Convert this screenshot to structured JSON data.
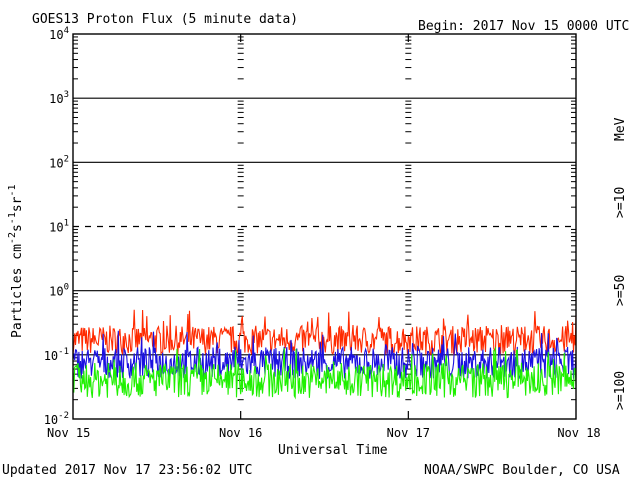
{
  "chart_data": {
    "type": "line",
    "title": "GOES13 Proton Flux (5 minute data)",
    "begin_label": "Begin: 2017 Nov 15 0000 UTC",
    "ylabel": "Particles cm-2s-1sr-1",
    "ylabel_parts": {
      "base": "Particles cm",
      "exp1": "-2",
      "mid1": "s",
      "exp2": "-1",
      "mid2": "sr",
      "exp3": "-1"
    },
    "xlabel": "Universal Time",
    "x_ticks": [
      "Nov 15",
      "Nov 16",
      "Nov 17",
      "Nov 18"
    ],
    "y_scale": "log",
    "ylim": [
      0.01,
      10000
    ],
    "y_ticks": [
      {
        "base": "10",
        "exp": "4"
      },
      {
        "base": "10",
        "exp": "3"
      },
      {
        "base": "10",
        "exp": "2"
      },
      {
        "base": "10",
        "exp": "1"
      },
      {
        "base": "10",
        "exp": "0"
      },
      {
        "base": "10",
        "exp": "-1"
      },
      {
        "base": "10",
        "exp": "-2"
      }
    ],
    "unit_label": "MeV",
    "series": [
      {
        "name": ">=10",
        "color": "#ff2a00",
        "base": 0.17,
        "spread": 0.45
      },
      {
        "name": ">=50",
        "color": "#1a10e0",
        "base": 0.075,
        "spread": 0.5
      },
      {
        "name": ">=100",
        "color": "#1ff000",
        "base": 0.04,
        "spread": 0.55
      }
    ]
  },
  "footer": {
    "updated": "Updated 2017 Nov 17 23:56:02 UTC",
    "source": "NOAA/SWPC Boulder, CO USA"
  }
}
